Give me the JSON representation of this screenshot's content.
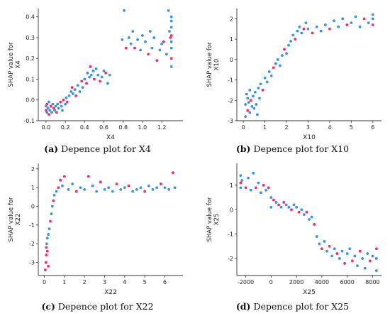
{
  "colors": {
    "low": "#1e88e5",
    "high": "#ff0d57",
    "axis": "#333333"
  },
  "captions": [
    {
      "letter": "(a)",
      "text": "Depence plot for X4"
    },
    {
      "letter": "(b)",
      "text": "Depence plot for X10"
    },
    {
      "letter": "(c)",
      "text": "Depence plot for X22"
    },
    {
      "letter": "(d)",
      "text": "Depence plot for X25"
    }
  ],
  "chart_data": [
    {
      "type": "scatter",
      "xlabel": "X4",
      "ylabel": "SHAP value for X4",
      "xlim": [
        -0.08,
        1.42
      ],
      "ylim": [
        -0.1,
        0.44
      ],
      "xticks": [
        "0.0",
        "0.2",
        "0.4",
        "0.6",
        "0.8",
        "1.0",
        "1.2"
      ],
      "xtick_values": [
        0.0,
        0.2,
        0.4,
        0.6,
        0.8,
        1.0,
        1.2
      ],
      "yticks": [
        "-0.1",
        "0.0",
        "0.1",
        "0.2",
        "0.3",
        "0.4"
      ],
      "ytick_values": [
        -0.1,
        0.0,
        0.1,
        0.2,
        0.3,
        0.4
      ],
      "points": [
        [
          0.0,
          -0.03,
          0
        ],
        [
          0.0,
          -0.05,
          1
        ],
        [
          0.01,
          -0.06,
          0
        ],
        [
          0.01,
          -0.02,
          1
        ],
        [
          0.02,
          -0.04,
          0
        ],
        [
          0.03,
          -0.07,
          1
        ],
        [
          0.03,
          -0.01,
          0
        ],
        [
          0.04,
          -0.05,
          0
        ],
        [
          0.05,
          -0.03,
          1
        ],
        [
          0.06,
          -0.06,
          0
        ],
        [
          0.07,
          -0.02,
          0
        ],
        [
          0.08,
          -0.04,
          1
        ],
        [
          0.09,
          -0.05,
          0
        ],
        [
          0.1,
          -0.03,
          0
        ],
        [
          0.11,
          -0.06,
          1
        ],
        [
          0.12,
          -0.02,
          0
        ],
        [
          0.13,
          -0.04,
          0
        ],
        [
          0.15,
          -0.01,
          1
        ],
        [
          0.16,
          -0.03,
          0
        ],
        [
          0.17,
          -0.05,
          0
        ],
        [
          0.18,
          0.0,
          1
        ],
        [
          0.2,
          -0.02,
          0
        ],
        [
          0.21,
          0.01,
          0
        ],
        [
          0.22,
          -0.01,
          1
        ],
        [
          0.24,
          0.02,
          0
        ],
        [
          0.26,
          0.04,
          0
        ],
        [
          0.27,
          0.06,
          1
        ],
        [
          0.28,
          0.03,
          0
        ],
        [
          0.3,
          0.05,
          0
        ],
        [
          0.31,
          0.02,
          1
        ],
        [
          0.33,
          0.07,
          0
        ],
        [
          0.35,
          0.04,
          0
        ],
        [
          0.37,
          0.09,
          1
        ],
        [
          0.38,
          0.06,
          0
        ],
        [
          0.4,
          0.1,
          0
        ],
        [
          0.42,
          0.08,
          1
        ],
        [
          0.43,
          0.13,
          0
        ],
        [
          0.45,
          0.11,
          0
        ],
        [
          0.46,
          0.16,
          1
        ],
        [
          0.47,
          0.12,
          0
        ],
        [
          0.49,
          0.14,
          0
        ],
        [
          0.5,
          0.1,
          1
        ],
        [
          0.52,
          0.15,
          0
        ],
        [
          0.54,
          0.12,
          0
        ],
        [
          0.56,
          0.09,
          1
        ],
        [
          0.58,
          0.11,
          0
        ],
        [
          0.6,
          0.14,
          0
        ],
        [
          0.62,
          0.13,
          1
        ],
        [
          0.64,
          0.08,
          0
        ],
        [
          0.66,
          0.12,
          0
        ],
        [
          0.79,
          0.29,
          0
        ],
        [
          0.81,
          0.43,
          0
        ],
        [
          0.83,
          0.25,
          1
        ],
        [
          0.86,
          0.3,
          0
        ],
        [
          0.88,
          0.27,
          0
        ],
        [
          0.9,
          0.33,
          0
        ],
        [
          0.92,
          0.25,
          1
        ],
        [
          0.95,
          0.29,
          0
        ],
        [
          0.98,
          0.24,
          0
        ],
        [
          1.0,
          0.31,
          0
        ],
        [
          1.03,
          0.28,
          0
        ],
        [
          1.06,
          0.22,
          1
        ],
        [
          1.08,
          0.33,
          0
        ],
        [
          1.1,
          0.25,
          0
        ],
        [
          1.12,
          0.3,
          0
        ],
        [
          1.15,
          0.19,
          1
        ],
        [
          1.18,
          0.24,
          0
        ],
        [
          1.2,
          0.27,
          0
        ],
        [
          1.22,
          0.28,
          1
        ],
        [
          1.25,
          0.22,
          0
        ],
        [
          1.27,
          0.43,
          0
        ],
        [
          1.28,
          0.33,
          0
        ],
        [
          1.3,
          0.4,
          0
        ],
        [
          1.3,
          0.35,
          0
        ],
        [
          1.3,
          0.31,
          1
        ],
        [
          1.3,
          0.28,
          0
        ],
        [
          1.3,
          0.25,
          0
        ],
        [
          1.3,
          0.2,
          1
        ],
        [
          1.3,
          0.16,
          0
        ],
        [
          1.3,
          0.38,
          0
        ],
        [
          1.29,
          0.3,
          1
        ]
      ]
    },
    {
      "type": "scatter",
      "xlabel": "X10",
      "ylabel": "SHAP value for X10",
      "xlim": [
        -0.3,
        6.4
      ],
      "ylim": [
        -3.0,
        2.5
      ],
      "xticks": [
        "0",
        "1",
        "2",
        "3",
        "4",
        "5",
        "6"
      ],
      "xtick_values": [
        0,
        1,
        2,
        3,
        4,
        5,
        6
      ],
      "yticks": [
        "-3",
        "-2",
        "-1",
        "0",
        "1",
        "2"
      ],
      "ytick_values": [
        -3,
        -2,
        -1,
        0,
        1,
        2
      ],
      "points": [
        [
          0.1,
          -2.8,
          0
        ],
        [
          0.1,
          -2.2,
          0
        ],
        [
          0.15,
          -1.7,
          0
        ],
        [
          0.2,
          -2.5,
          1
        ],
        [
          0.2,
          -1.9,
          0
        ],
        [
          0.25,
          -2.1,
          0
        ],
        [
          0.3,
          -2.6,
          0
        ],
        [
          0.3,
          -1.5,
          0
        ],
        [
          0.35,
          -2.0,
          1
        ],
        [
          0.4,
          -2.3,
          0
        ],
        [
          0.45,
          -1.8,
          0
        ],
        [
          0.5,
          -2.4,
          0
        ],
        [
          0.55,
          -1.6,
          0
        ],
        [
          0.6,
          -2.2,
          0
        ],
        [
          0.65,
          -2.7,
          0
        ],
        [
          0.7,
          -1.4,
          0
        ],
        [
          0.75,
          -1.9,
          0
        ],
        [
          0.8,
          -1.2,
          0
        ],
        [
          0.9,
          -1.5,
          1
        ],
        [
          1.0,
          -0.9,
          0
        ],
        [
          1.1,
          -1.1,
          0
        ],
        [
          1.2,
          -0.6,
          0
        ],
        [
          1.3,
          -0.8,
          0
        ],
        [
          1.4,
          -0.4,
          1
        ],
        [
          1.5,
          -0.2,
          0
        ],
        [
          1.6,
          0.0,
          0
        ],
        [
          1.7,
          -0.3,
          0
        ],
        [
          1.8,
          0.2,
          0
        ],
        [
          1.9,
          0.5,
          1
        ],
        [
          2.0,
          0.3,
          0
        ],
        [
          2.1,
          0.7,
          0
        ],
        [
          2.2,
          0.9,
          0
        ],
        [
          2.3,
          1.2,
          0
        ],
        [
          2.4,
          1.0,
          1
        ],
        [
          2.5,
          1.4,
          0
        ],
        [
          2.6,
          1.6,
          0
        ],
        [
          2.7,
          1.3,
          0
        ],
        [
          2.8,
          1.5,
          1
        ],
        [
          2.9,
          1.8,
          0
        ],
        [
          3.0,
          1.5,
          0
        ],
        [
          3.2,
          1.3,
          1
        ],
        [
          3.4,
          1.6,
          0
        ],
        [
          3.6,
          1.4,
          0
        ],
        [
          3.8,
          1.7,
          0
        ],
        [
          4.0,
          1.5,
          1
        ],
        [
          4.2,
          1.9,
          0
        ],
        [
          4.4,
          1.6,
          0
        ],
        [
          4.6,
          2.0,
          0
        ],
        [
          4.8,
          1.7,
          1
        ],
        [
          5.0,
          1.8,
          0
        ],
        [
          5.2,
          2.1,
          0
        ],
        [
          5.4,
          1.6,
          0
        ],
        [
          5.6,
          2.0,
          1
        ],
        [
          5.8,
          1.8,
          0
        ],
        [
          6.0,
          2.2,
          0
        ],
        [
          6.0,
          1.7,
          1
        ],
        [
          6.0,
          2.0,
          0
        ]
      ]
    },
    {
      "type": "scatter",
      "xlabel": "X22",
      "ylabel": "SHAP value for X22",
      "xlim": [
        -0.3,
        6.9
      ],
      "ylim": [
        -3.7,
        2.3
      ],
      "xticks": [
        "0",
        "1",
        "2",
        "3",
        "4",
        "5",
        "6"
      ],
      "xtick_values": [
        0,
        1,
        2,
        3,
        4,
        5,
        6
      ],
      "yticks": [
        "-3",
        "-2",
        "-1",
        "0",
        "1",
        "2"
      ],
      "ytick_values": [
        -3,
        -2,
        -1,
        0,
        1,
        2
      ],
      "points": [
        [
          0.05,
          -3.4,
          1
        ],
        [
          0.08,
          -3.0,
          1
        ],
        [
          0.1,
          -2.6,
          1
        ],
        [
          0.1,
          -2.2,
          1
        ],
        [
          0.12,
          -2.0,
          0
        ],
        [
          0.15,
          -1.7,
          0
        ],
        [
          0.15,
          -2.4,
          1
        ],
        [
          0.2,
          -1.5,
          0
        ],
        [
          0.2,
          -3.2,
          1
        ],
        [
          0.25,
          -1.2,
          0
        ],
        [
          0.3,
          -0.8,
          1
        ],
        [
          0.35,
          -0.4,
          0
        ],
        [
          0.4,
          0.0,
          0
        ],
        [
          0.45,
          0.3,
          1
        ],
        [
          0.5,
          0.6,
          0
        ],
        [
          0.6,
          0.8,
          0
        ],
        [
          0.7,
          1.0,
          1
        ],
        [
          0.8,
          1.4,
          1
        ],
        [
          0.9,
          1.1,
          0
        ],
        [
          1.0,
          1.6,
          1
        ],
        [
          1.2,
          0.9,
          0
        ],
        [
          1.4,
          1.2,
          0
        ],
        [
          1.6,
          0.8,
          1
        ],
        [
          1.8,
          1.0,
          0
        ],
        [
          2.0,
          0.9,
          0
        ],
        [
          2.2,
          1.6,
          1
        ],
        [
          2.4,
          1.1,
          0
        ],
        [
          2.6,
          0.8,
          0
        ],
        [
          2.8,
          1.3,
          1
        ],
        [
          3.0,
          0.9,
          0
        ],
        [
          3.2,
          1.0,
          0
        ],
        [
          3.4,
          0.8,
          0
        ],
        [
          3.6,
          1.2,
          1
        ],
        [
          3.8,
          0.9,
          0
        ],
        [
          4.0,
          1.0,
          0
        ],
        [
          4.2,
          1.1,
          1
        ],
        [
          4.4,
          0.8,
          0
        ],
        [
          4.6,
          0.9,
          0
        ],
        [
          4.8,
          1.0,
          0
        ],
        [
          5.0,
          0.8,
          1
        ],
        [
          5.2,
          1.1,
          0
        ],
        [
          5.4,
          0.9,
          0
        ],
        [
          5.6,
          1.0,
          0
        ],
        [
          5.8,
          1.2,
          1
        ],
        [
          6.0,
          1.0,
          0
        ],
        [
          6.2,
          0.9,
          0
        ],
        [
          6.4,
          1.8,
          1
        ],
        [
          6.5,
          1.0,
          0
        ]
      ]
    },
    {
      "type": "scatter",
      "xlabel": "X25",
      "ylabel": "SHAP value for X25",
      "xlim": [
        -2700,
        8700
      ],
      "ylim": [
        -2.7,
        1.9
      ],
      "xticks": [
        "-2000",
        "0",
        "2000",
        "4000",
        "6000",
        "8000"
      ],
      "xtick_values": [
        -2000,
        0,
        2000,
        4000,
        6000,
        8000
      ],
      "yticks": [
        "-2",
        "-1",
        "0",
        "1"
      ],
      "ytick_values": [
        -2,
        -1,
        0,
        1
      ],
      "points": [
        [
          -2400,
          1.4,
          0
        ],
        [
          -2400,
          1.1,
          1
        ],
        [
          -2400,
          0.9,
          0
        ],
        [
          -2300,
          1.2,
          0
        ],
        [
          -2000,
          0.9,
          1
        ],
        [
          -1800,
          1.3,
          0
        ],
        [
          -1600,
          0.8,
          0
        ],
        [
          -1400,
          1.5,
          0
        ],
        [
          -1200,
          0.9,
          1
        ],
        [
          -1000,
          1.1,
          0
        ],
        [
          -800,
          0.7,
          0
        ],
        [
          -600,
          1.0,
          1
        ],
        [
          -400,
          0.8,
          0
        ],
        [
          -200,
          0.9,
          1
        ],
        [
          0,
          0.5,
          0
        ],
        [
          0,
          0.1,
          0
        ],
        [
          200,
          0.4,
          1
        ],
        [
          400,
          0.3,
          0
        ],
        [
          600,
          0.2,
          1
        ],
        [
          800,
          0.1,
          0
        ],
        [
          1000,
          0.3,
          1
        ],
        [
          1200,
          0.2,
          0
        ],
        [
          1400,
          0.1,
          0
        ],
        [
          1600,
          0.0,
          1
        ],
        [
          1800,
          0.2,
          0
        ],
        [
          2000,
          0.1,
          0
        ],
        [
          2200,
          -0.1,
          1
        ],
        [
          2400,
          0.0,
          0
        ],
        [
          2600,
          -0.2,
          0
        ],
        [
          2800,
          -0.1,
          1
        ],
        [
          3000,
          -0.4,
          0
        ],
        [
          3200,
          -0.3,
          0
        ],
        [
          3400,
          -0.6,
          1
        ],
        [
          3600,
          -1.1,
          0
        ],
        [
          3800,
          -1.4,
          0
        ],
        [
          4000,
          -1.6,
          1
        ],
        [
          4200,
          -1.3,
          0
        ],
        [
          4400,
          -1.7,
          0
        ],
        [
          4600,
          -1.5,
          1
        ],
        [
          4800,
          -1.9,
          0
        ],
        [
          5000,
          -1.6,
          0
        ],
        [
          5200,
          -1.8,
          1
        ],
        [
          5400,
          -2.0,
          0
        ],
        [
          5600,
          -1.7,
          0
        ],
        [
          5800,
          -2.2,
          1
        ],
        [
          6000,
          -1.8,
          0
        ],
        [
          6200,
          -1.6,
          0
        ],
        [
          6400,
          -2.1,
          1
        ],
        [
          6600,
          -1.9,
          0
        ],
        [
          6800,
          -2.3,
          0
        ],
        [
          7000,
          -1.7,
          1
        ],
        [
          7200,
          -2.0,
          0
        ],
        [
          7400,
          -2.4,
          0
        ],
        [
          7600,
          -1.8,
          0
        ],
        [
          7800,
          -2.1,
          1
        ],
        [
          8000,
          -1.9,
          0
        ],
        [
          8300,
          -2.5,
          0
        ],
        [
          8300,
          -2.0,
          0
        ],
        [
          8300,
          -1.6,
          1
        ]
      ]
    }
  ]
}
